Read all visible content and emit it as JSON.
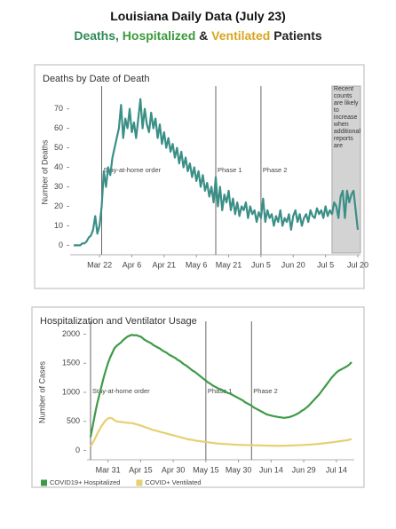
{
  "header": {
    "title": "Louisiana Daily Data (July 23)",
    "subtitle": [
      {
        "text": "Deaths,",
        "color": "#2e8b57"
      },
      {
        "text": "Hospitalized",
        "color": "#3a9a3a"
      },
      {
        "text": "&",
        "color": "#222222"
      },
      {
        "text": "Ventilated",
        "color": "#d9a520"
      },
      {
        "text": "Patients",
        "color": "#222222"
      }
    ]
  },
  "chart_data": [
    {
      "type": "line",
      "title": "Deaths by Date of Death",
      "y_label": "Number of Deaths",
      "color": "#3a8f86",
      "categories": [
        null,
        null,
        null,
        null,
        null,
        null,
        null,
        null,
        null,
        null,
        null,
        null,
        "Mar 22",
        null,
        null,
        null,
        null,
        null,
        null,
        null,
        null,
        null,
        null,
        null,
        null,
        null,
        null,
        "Apr 6",
        null,
        null,
        null,
        null,
        null,
        null,
        null,
        null,
        null,
        null,
        null,
        null,
        null,
        null,
        "Apr 21",
        null,
        null,
        null,
        null,
        null,
        null,
        null,
        null,
        null,
        null,
        null,
        null,
        null,
        null,
        "May 6",
        null,
        null,
        null,
        null,
        null,
        null,
        null,
        null,
        null,
        null,
        null,
        null,
        null,
        null,
        "May 21",
        null,
        null,
        null,
        null,
        null,
        null,
        null,
        null,
        null,
        null,
        null,
        null,
        null,
        null,
        "Jun 5",
        null,
        null,
        null,
        null,
        null,
        null,
        null,
        null,
        null,
        null,
        null,
        null,
        null,
        null,
        "Jun 20",
        null,
        null,
        null,
        null,
        null,
        null,
        null,
        null,
        null,
        null,
        null,
        null,
        null,
        null,
        "Jul 5",
        null,
        null,
        null,
        null,
        null,
        null,
        null,
        null,
        null,
        null,
        null,
        null,
        null,
        null,
        "Jul 20"
      ],
      "values": [
        0,
        0,
        0,
        0,
        1,
        1,
        2,
        4,
        5,
        8,
        15,
        6,
        10,
        20,
        38,
        30,
        40,
        36,
        45,
        50,
        55,
        60,
        72,
        55,
        65,
        60,
        70,
        58,
        63,
        55,
        65,
        75,
        60,
        70,
        62,
        58,
        68,
        60,
        65,
        55,
        62,
        52,
        58,
        50,
        55,
        48,
        52,
        45,
        50,
        42,
        48,
        40,
        45,
        38,
        42,
        35,
        40,
        33,
        38,
        30,
        36,
        28,
        32,
        25,
        30,
        22,
        35,
        20,
        30,
        18,
        26,
        22,
        28,
        18,
        24,
        16,
        22,
        15,
        20,
        18,
        22,
        14,
        20,
        16,
        18,
        12,
        17,
        14,
        24,
        12,
        18,
        14,
        16,
        10,
        15,
        12,
        18,
        10,
        14,
        12,
        16,
        8,
        15,
        18,
        12,
        16,
        10,
        14,
        16,
        12,
        18,
        15,
        14,
        19,
        16,
        18,
        14,
        20,
        15,
        18,
        16,
        22,
        20,
        14,
        25,
        28,
        14,
        28,
        22,
        26,
        28,
        18,
        8
      ],
      "ylim": [
        -3,
        78
      ],
      "yticks": [
        0,
        10,
        20,
        30,
        40,
        50,
        60,
        70
      ],
      "grid": false,
      "annotations": [
        {
          "index": 13,
          "label": "Stay-at-home order"
        },
        {
          "index": 66,
          "label": "Phase 1"
        },
        {
          "index": 87,
          "label": "Phase 2"
        }
      ],
      "shade": {
        "from": 120,
        "to": 132,
        "label": "Recent counts are likely to increase when additional reports are received"
      }
    },
    {
      "type": "line",
      "title": "Hospitalization and Ventilator Usage",
      "y_label": "Number of Cases",
      "categories": [
        null,
        null,
        null,
        null,
        null,
        null,
        null,
        null,
        "Mar 31",
        null,
        null,
        null,
        null,
        null,
        null,
        null,
        null,
        null,
        null,
        null,
        null,
        null,
        null,
        "Apr 15",
        null,
        null,
        null,
        null,
        null,
        null,
        null,
        null,
        null,
        null,
        null,
        null,
        null,
        null,
        "Apr 30",
        null,
        null,
        null,
        null,
        null,
        null,
        null,
        null,
        null,
        null,
        null,
        null,
        null,
        null,
        "May 15",
        null,
        null,
        null,
        null,
        null,
        null,
        null,
        null,
        null,
        null,
        null,
        null,
        null,
        null,
        "May 30",
        null,
        null,
        null,
        null,
        null,
        null,
        null,
        null,
        null,
        null,
        null,
        null,
        null,
        null,
        "Jun 14",
        null,
        null,
        null,
        null,
        null,
        null,
        null,
        null,
        null,
        null,
        null,
        null,
        null,
        null,
        "Jun 29",
        null,
        null,
        null,
        null,
        null,
        null,
        null,
        null,
        null,
        null,
        null,
        null,
        null,
        null,
        "Jul 14",
        null,
        null,
        null,
        null,
        null,
        null,
        null
      ],
      "series": [
        {
          "name": "COVID19+ Hospitalized",
          "color": "#3e9a48",
          "values": [
            230,
            420,
            620,
            800,
            950,
            1100,
            1250,
            1380,
            1500,
            1600,
            1680,
            1760,
            1800,
            1830,
            1860,
            1900,
            1930,
            1960,
            1975,
            1990,
            1980,
            1985,
            1970,
            1960,
            1930,
            1900,
            1880,
            1860,
            1840,
            1810,
            1790,
            1770,
            1750,
            1720,
            1700,
            1680,
            1650,
            1630,
            1610,
            1590,
            1560,
            1540,
            1510,
            1480,
            1460,
            1430,
            1400,
            1370,
            1350,
            1320,
            1290,
            1260,
            1230,
            1200,
            1170,
            1150,
            1120,
            1100,
            1080,
            1060,
            1050,
            1030,
            1010,
            990,
            980,
            960,
            940,
            920,
            900,
            880,
            860,
            830,
            810,
            790,
            770,
            740,
            720,
            700,
            680,
            660,
            640,
            620,
            610,
            600,
            590,
            585,
            575,
            570,
            565,
            560,
            565,
            570,
            580,
            595,
            610,
            630,
            650,
            680,
            700,
            730,
            760,
            800,
            840,
            880,
            920,
            960,
            1010,
            1060,
            1110,
            1160,
            1210,
            1260,
            1300,
            1340,
            1370,
            1390,
            1410,
            1430,
            1450,
            1480,
            1520
          ]
        },
        {
          "name": "COVID+ Ventilated",
          "color": "#e6d070",
          "values": [
            70,
            130,
            200,
            280,
            350,
            420,
            470,
            520,
            550,
            560,
            550,
            520,
            500,
            495,
            490,
            485,
            480,
            475,
            470,
            470,
            460,
            450,
            440,
            430,
            415,
            400,
            390,
            375,
            360,
            350,
            340,
            330,
            320,
            310,
            300,
            290,
            280,
            270,
            260,
            250,
            240,
            230,
            220,
            210,
            200,
            190,
            185,
            180,
            170,
            165,
            160,
            155,
            150,
            145,
            140,
            135,
            130,
            125,
            120,
            118,
            115,
            112,
            110,
            108,
            105,
            102,
            100,
            98,
            96,
            95,
            94,
            93,
            92,
            91,
            90,
            89,
            88,
            87,
            86,
            85,
            84,
            83,
            82,
            82,
            81,
            80,
            80,
            80,
            80,
            81,
            82,
            83,
            84,
            85,
            86,
            88,
            90,
            92,
            94,
            96,
            98,
            100,
            103,
            106,
            110,
            114,
            118,
            122,
            126,
            130,
            135,
            140,
            145,
            150,
            155,
            160,
            165,
            170,
            175,
            185,
            195
          ]
        }
      ],
      "ylim": [
        -100,
        2100
      ],
      "yticks": [
        0,
        500,
        1000,
        1500,
        2000
      ],
      "grid": false,
      "legend": "bottom-left",
      "annotations": [
        {
          "index": 0,
          "label": "Stay-at-home order"
        },
        {
          "index": 53,
          "label": "Phase 1"
        },
        {
          "index": 74,
          "label": "Phase 2"
        }
      ]
    }
  ]
}
